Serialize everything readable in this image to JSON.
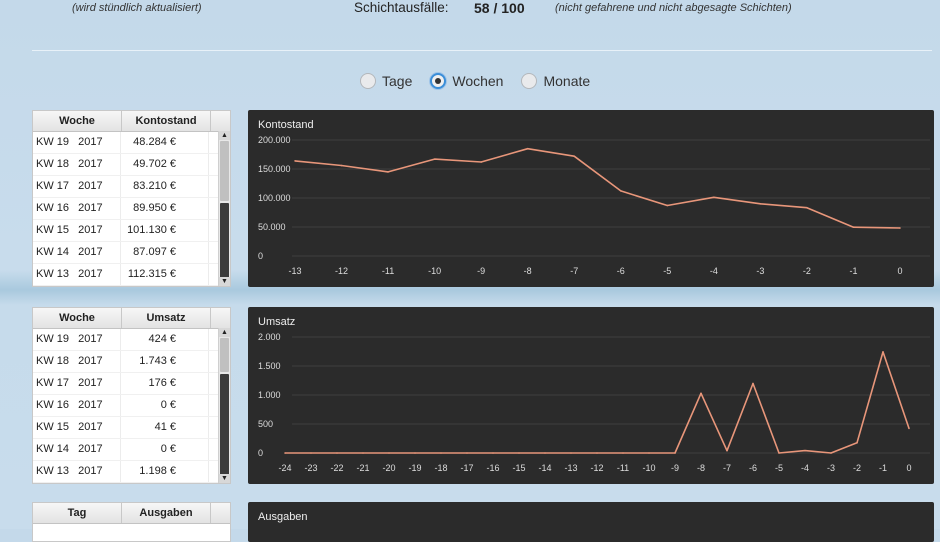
{
  "header": {
    "left_note": "(wird stündlich aktualisiert)",
    "shift_label": "Schichtausfälle:",
    "shift_value": "58 / 100",
    "shift_note": "(nicht gefahrene und nicht abgesagte Schichten)"
  },
  "period": {
    "options": [
      "Tage",
      "Wochen",
      "Monate"
    ],
    "selected": "Wochen"
  },
  "tables": {
    "balance": {
      "col1": "Woche",
      "col2": "Kontostand",
      "rows": [
        {
          "week": "KW 19   2017",
          "value": "48.284 €"
        },
        {
          "week": "KW 18   2017",
          "value": "49.702 €"
        },
        {
          "week": "KW 17   2017",
          "value": "83.210 €"
        },
        {
          "week": "KW 16   2017",
          "value": "89.950 €"
        },
        {
          "week": "KW 15   2017",
          "value": "101.130 €"
        },
        {
          "week": "KW 14   2017",
          "value": "87.097 €"
        },
        {
          "week": "KW 13   2017",
          "value": "112.315 €"
        }
      ]
    },
    "revenue": {
      "col1": "Woche",
      "col2": "Umsatz",
      "rows": [
        {
          "week": "KW 19   2017",
          "value": "424 €"
        },
        {
          "week": "KW 18   2017",
          "value": "1.743 €"
        },
        {
          "week": "KW 17   2017",
          "value": "176 €"
        },
        {
          "week": "KW 16   2017",
          "value": "0 €"
        },
        {
          "week": "KW 15   2017",
          "value": "41 €"
        },
        {
          "week": "KW 14   2017",
          "value": "0 €"
        },
        {
          "week": "KW 13   2017",
          "value": "1.198 €"
        }
      ]
    },
    "expenses": {
      "col1": "Tag",
      "col2": "Ausgaben"
    }
  },
  "chart_data": [
    {
      "type": "line",
      "title": "Kontostand",
      "color": "#e8967a",
      "x": [
        -13,
        -12,
        -11,
        -10,
        -9,
        -8,
        -7,
        -6,
        -5,
        -4,
        -3,
        -2,
        -1,
        0
      ],
      "x_tick_labels": [
        "-13",
        "-12",
        "-11",
        "-10",
        "-9",
        "-8",
        "-7",
        "-6",
        "-5",
        "-4",
        "-3",
        "-2",
        "-1",
        "0"
      ],
      "y": [
        164000,
        156000,
        145000,
        167000,
        162000,
        185000,
        172000,
        112315,
        87097,
        101130,
        89950,
        83210,
        49702,
        48284
      ],
      "ylim": [
        0,
        200000
      ],
      "y_ticks": [
        0,
        50000,
        100000,
        150000,
        200000
      ],
      "y_tick_labels": [
        "0",
        "50.000",
        "100.000",
        "150.000",
        "200.000"
      ],
      "grid": true
    },
    {
      "type": "line",
      "title": "Umsatz",
      "color": "#e8967a",
      "x": [
        -24,
        -23,
        -22,
        -21,
        -20,
        -19,
        -18,
        -17,
        -16,
        -15,
        -14,
        -13,
        -12,
        -11,
        -10,
        -9,
        -8,
        -7,
        -6,
        -5,
        -4,
        -3,
        -2,
        -1,
        0
      ],
      "x_tick_labels": [
        "-24",
        "-23",
        "-22",
        "-21",
        "-20",
        "-19",
        "-18",
        "-17",
        "-16",
        "-15",
        "-14",
        "-13",
        "-12",
        "-11",
        "-10",
        "-9",
        "-8",
        "-7",
        "-6",
        "-5",
        "-4",
        "-3",
        "-2",
        "-1",
        "0"
      ],
      "y": [
        0,
        0,
        0,
        0,
        0,
        0,
        0,
        0,
        0,
        0,
        0,
        0,
        0,
        0,
        0,
        0,
        1030,
        40,
        1198,
        0,
        41,
        0,
        176,
        1743,
        424
      ],
      "ylim": [
        0,
        2000
      ],
      "y_ticks": [
        0,
        500,
        1000,
        1500,
        2000
      ],
      "y_tick_labels": [
        "0",
        "500",
        "1.000",
        "1.500",
        "2.000"
      ],
      "grid": true
    },
    {
      "type": "line",
      "title": "Ausgaben"
    }
  ]
}
